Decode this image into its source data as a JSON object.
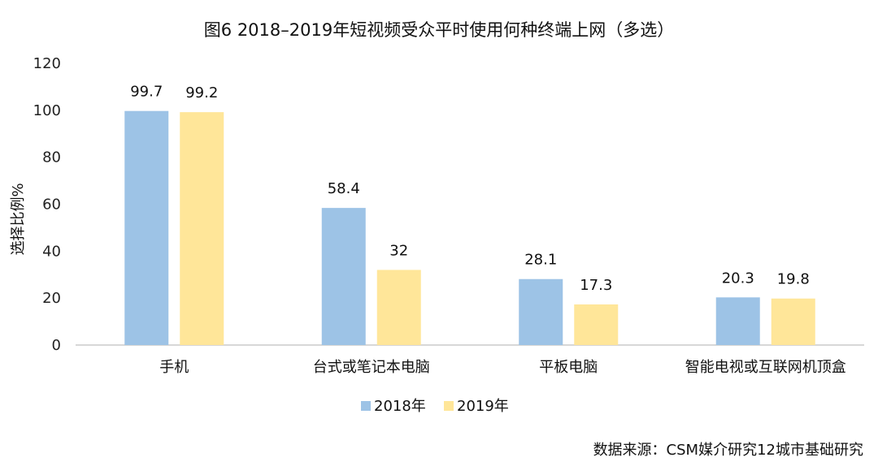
{
  "chart_data": {
    "type": "bar",
    "title": "图6  2018–2019年短视频受众平时使用何种终端上网（多选）",
    "ylabel": "选择比例%",
    "xlabel": "",
    "ylim": [
      0,
      120
    ],
    "yticks": [
      0,
      20,
      40,
      60,
      80,
      100,
      120
    ],
    "categories": [
      "手机",
      "台式或笔记本电脑",
      "平板电脑",
      "智能电视或互联网机顶盒"
    ],
    "series": [
      {
        "name": "2018年",
        "color": "#9DC3E6",
        "values": [
          99.7,
          58.4,
          28.1,
          20.3
        ],
        "labels": [
          "99.7",
          "58.4",
          "28.1",
          "20.3"
        ]
      },
      {
        "name": "2019年",
        "color": "#FFE699",
        "values": [
          99.2,
          32,
          17.3,
          19.8
        ],
        "labels": [
          "99.2",
          "32",
          "17.3",
          "19.8"
        ]
      }
    ],
    "grid": false,
    "legend": "bottom-center"
  },
  "source": "数据来源：CSM媒介研究12城市基础研究"
}
